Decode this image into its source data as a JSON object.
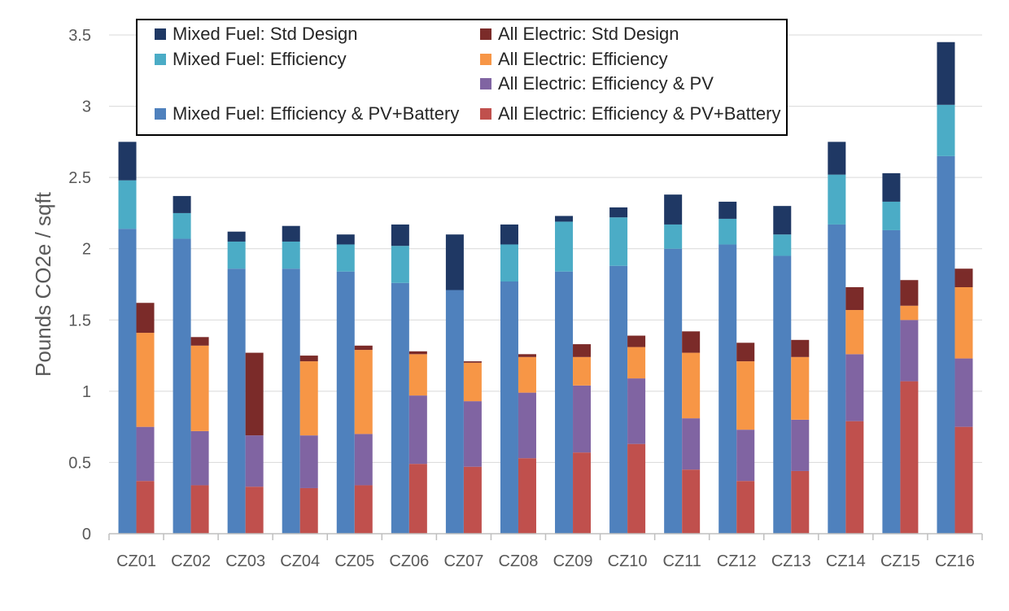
{
  "chart_data": {
    "type": "bar",
    "stacked": true,
    "grouped": true,
    "title": "",
    "xlabel": "",
    "ylabel": "Pounds CO2e / sqft",
    "ylim": [
      0,
      3.5
    ],
    "yticks": [
      "0",
      "0.5",
      "1",
      "1.5",
      "2",
      "2.5",
      "3",
      "3.5"
    ],
    "grid": "horizontal",
    "legend_position": "top",
    "categories": [
      "CZ01",
      "CZ02",
      "CZ03",
      "CZ04",
      "CZ05",
      "CZ06",
      "CZ07",
      "CZ08",
      "CZ09",
      "CZ10",
      "CZ11",
      "CZ12",
      "CZ13",
      "CZ14",
      "CZ15",
      "CZ16"
    ],
    "groups": [
      {
        "name": "Mixed Fuel",
        "series": [
          {
            "name": "Mixed Fuel: Efficiency & PV+Battery",
            "color": "#4F81BD",
            "values": [
              2.14,
              2.07,
              1.86,
              1.86,
              1.84,
              1.76,
              1.71,
              1.77,
              1.84,
              1.88,
              2.0,
              2.03,
              1.95,
              2.17,
              2.13,
              2.65
            ]
          },
          {
            "name": "Mixed Fuel: Efficiency",
            "color": "#4BACC6",
            "values": [
              0.34,
              0.18,
              0.19,
              0.19,
              0.19,
              0.26,
              0.0,
              0.26,
              0.35,
              0.34,
              0.17,
              0.18,
              0.15,
              0.35,
              0.2,
              0.36
            ]
          },
          {
            "name": "Mixed Fuel: Std Design",
            "color": "#1F3864",
            "values": [
              0.27,
              0.12,
              0.07,
              0.11,
              0.07,
              0.15,
              0.39,
              0.14,
              0.04,
              0.07,
              0.21,
              0.12,
              0.2,
              0.23,
              0.2,
              0.44
            ]
          }
        ]
      },
      {
        "name": "All Electric",
        "series": [
          {
            "name": "All Electric: Efficiency & PV+Battery",
            "color": "#C0504D",
            "values": [
              0.37,
              0.34,
              0.33,
              0.32,
              0.34,
              0.49,
              0.47,
              0.53,
              0.57,
              0.63,
              0.45,
              0.37,
              0.44,
              0.79,
              1.07,
              0.75
            ]
          },
          {
            "name": "All Electric: Efficiency & PV",
            "color": "#8064A2",
            "values": [
              0.38,
              0.38,
              0.36,
              0.37,
              0.36,
              0.48,
              0.46,
              0.46,
              0.47,
              0.46,
              0.36,
              0.36,
              0.36,
              0.47,
              0.43,
              0.48
            ]
          },
          {
            "name": "All Electric: Efficiency",
            "color": "#F79646",
            "values": [
              0.66,
              0.6,
              0.0,
              0.52,
              0.59,
              0.29,
              0.27,
              0.25,
              0.2,
              0.22,
              0.46,
              0.48,
              0.44,
              0.31,
              0.1,
              0.5
            ]
          },
          {
            "name": "All Electric: Std Design",
            "color": "#7B2B29",
            "values": [
              0.21,
              0.06,
              0.58,
              0.04,
              0.03,
              0.02,
              0.01,
              0.02,
              0.09,
              0.08,
              0.15,
              0.13,
              0.12,
              0.16,
              0.18,
              0.13
            ]
          }
        ]
      }
    ],
    "legend": [
      {
        "label": "Mixed Fuel: Std Design",
        "color": "#1F3864"
      },
      {
        "label": "All Electric: Std Design",
        "color": "#7B2B29"
      },
      {
        "label": "Mixed Fuel: Efficiency",
        "color": "#4BACC6"
      },
      {
        "label": "All Electric: Efficiency",
        "color": "#F79646"
      },
      {
        "label": "All Electric: Efficiency & PV",
        "color": "#8064A2"
      },
      {
        "label": "Mixed Fuel: Efficiency & PV+Battery",
        "color": "#4F81BD"
      },
      {
        "label": "All Electric: Efficiency & PV+Battery",
        "color": "#C0504D"
      }
    ]
  }
}
